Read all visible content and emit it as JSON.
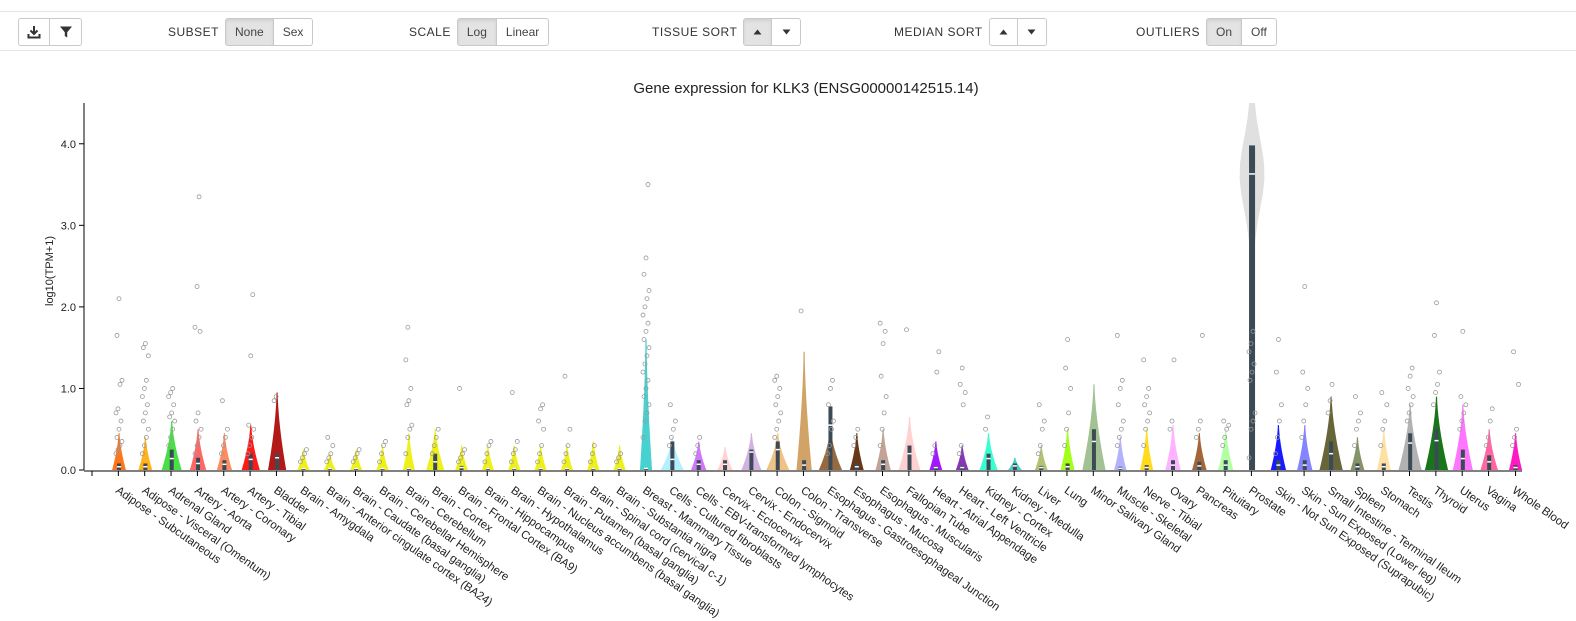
{
  "toolbar": {
    "download_icon": "download-icon",
    "filter_icon": "filter-icon",
    "subset": {
      "label": "SUBSET",
      "options": [
        "None",
        "Sex"
      ],
      "selected": "None"
    },
    "scale": {
      "label": "SCALE",
      "options": [
        "Log",
        "Linear"
      ],
      "selected": "Log"
    },
    "tissue_sort": {
      "label": "TISSUE SORT",
      "selected": "up"
    },
    "median_sort": {
      "label": "MEDIAN SORT",
      "selected": ""
    },
    "outliers": {
      "label": "OUTLIERS",
      "options": [
        "On",
        "Off"
      ],
      "selected": "On"
    }
  },
  "chart_data": {
    "type": "violin",
    "title": "Gene expression for KLK3 (ENSG00000142515.14)",
    "ylabel": "log10(TPM+1)",
    "ylim": [
      0,
      4.5
    ],
    "yticks": [
      "0.0",
      "1.0",
      "2.0",
      "3.0",
      "4.0"
    ],
    "categories": [
      "Adipose - Subcutaneous",
      "Adipose - Visceral (Omentum)",
      "Adrenal Gland",
      "Artery - Aorta",
      "Artery - Coronary",
      "Artery - Tibial",
      "Bladder",
      "Brain - Amygdala",
      "Brain - Anterior cingulate cortex (BA24)",
      "Brain - Caudate (basal ganglia)",
      "Brain - Cerebellar Hemisphere",
      "Brain - Cerebellum",
      "Brain - Cortex",
      "Brain - Frontal Cortex (BA9)",
      "Brain - Hippocampus",
      "Brain - Hypothalamus",
      "Brain - Nucleus accumbens (basal ganglia)",
      "Brain - Putamen (basal ganglia)",
      "Brain - Spinal cord (cervical c-1)",
      "Brain - Substantia nigra",
      "Breast - Mammary Tissue",
      "Cells - Cultured fibroblasts",
      "Cells - EBV-transformed lymphocytes",
      "Cervix - Ectocervix",
      "Cervix - Endocervix",
      "Colon - Sigmoid",
      "Colon - Transverse",
      "Esophagus - Gastroesophageal Junction",
      "Esophagus - Mucosa",
      "Esophagus - Muscularis",
      "Fallopian Tube",
      "Heart - Atrial Appendage",
      "Heart - Left Ventricle",
      "Kidney - Cortex",
      "Kidney - Medulla",
      "Liver",
      "Lung",
      "Minor Salivary Gland",
      "Muscle - Skeletal",
      "Nerve - Tibial",
      "Ovary",
      "Pancreas",
      "Pituitary",
      "Prostate",
      "Skin - Not Sun Exposed (Suprapubic)",
      "Skin - Sun Exposed (Lower leg)",
      "Small Intestine - Terminal Ileum",
      "Spleen",
      "Stomach",
      "Testis",
      "Thyroid",
      "Uterus",
      "Vagina",
      "Whole Blood"
    ],
    "colors": [
      "#ff6600",
      "#ffaa00",
      "#33dd33",
      "#ff5555",
      "#ff7f50",
      "#ff0000",
      "#aa0000",
      "#eeee00",
      "#eeee00",
      "#eeee00",
      "#eeee00",
      "#eeee00",
      "#eeee00",
      "#eeee00",
      "#eeee00",
      "#eeee00",
      "#eeee00",
      "#eeee00",
      "#eeee00",
      "#eeee00",
      "#33cccc",
      "#aaeeff",
      "#cc66ff",
      "#ffcccc",
      "#ccaadd",
      "#eebb77",
      "#cc9955",
      "#8b5a2b",
      "#552200",
      "#bb9988",
      "#ffcccc",
      "#9900ff",
      "#7722aa",
      "#22ffcc",
      "#33ccbb",
      "#aabb66",
      "#99ff00",
      "#99bb88",
      "#aaaaff",
      "#ffd700",
      "#ffaaff",
      "#995522",
      "#aaff99",
      "#dddddd",
      "#0000ff",
      "#7777ff",
      "#555522",
      "#778855",
      "#ffdd99",
      "#aaaaaa",
      "#006600",
      "#ff66ff",
      "#ff5599",
      "#ff00bb"
    ],
    "medians": [
      0.04,
      0.04,
      0.14,
      0.08,
      0.07,
      0.13,
      0.15,
      0.02,
      0.02,
      0.02,
      0.02,
      0.02,
      0.1,
      0.03,
      0.02,
      0.02,
      0.02,
      0.02,
      0.02,
      0.02,
      0.02,
      0.13,
      0.07,
      0.07,
      0.22,
      0.25,
      0.06,
      0.55,
      0.04,
      0.07,
      0.2,
      0.03,
      0.03,
      0.14,
      0.05,
      0.03,
      0.04,
      0.35,
      0.02,
      0.03,
      0.06,
      0.05,
      0.06,
      3.63,
      0.06,
      0.06,
      0.2,
      0.04,
      0.04,
      0.33,
      0.36,
      0.14,
      0.1,
      0.03
    ],
    "violin_max": [
      0.45,
      0.4,
      0.6,
      0.5,
      0.45,
      0.55,
      0.95,
      0.25,
      0.2,
      0.25,
      0.3,
      0.45,
      0.5,
      0.3,
      0.3,
      0.3,
      0.3,
      0.3,
      0.35,
      0.3,
      1.6,
      0.4,
      0.35,
      0.28,
      0.45,
      0.45,
      1.45,
      0.5,
      0.45,
      0.5,
      0.65,
      0.35,
      0.3,
      0.45,
      0.15,
      0.3,
      0.5,
      1.05,
      0.4,
      0.5,
      0.55,
      0.45,
      0.5,
      4.5,
      0.55,
      0.55,
      0.9,
      0.4,
      0.5,
      0.8,
      0.9,
      0.8,
      0.5,
      0.45
    ],
    "q3": [
      0.08,
      0.08,
      0.25,
      0.15,
      0.12,
      0.2,
      0.2,
      0.03,
      0.03,
      0.03,
      0.03,
      0.03,
      0.2,
      0.05,
      0.03,
      0.03,
      0.03,
      0.03,
      0.03,
      0.03,
      0.03,
      0.35,
      0.12,
      0.12,
      0.25,
      0.35,
      0.12,
      0.78,
      0.08,
      0.12,
      0.3,
      0.05,
      0.05,
      0.2,
      0.08,
      0.05,
      0.08,
      0.5,
      0.04,
      0.06,
      0.12,
      0.1,
      0.12,
      3.98,
      0.12,
      0.12,
      0.35,
      0.08,
      0.08,
      0.45,
      0.5,
      0.25,
      0.18,
      0.06
    ],
    "outliers": [
      [
        0.2,
        0.25,
        0.3,
        0.35,
        0.4,
        0.5,
        0.6,
        0.7,
        0.75,
        1.05,
        1.1,
        1.65,
        2.1
      ],
      [
        0.2,
        0.3,
        0.4,
        0.5,
        0.6,
        0.7,
        0.8,
        0.9,
        1.0,
        1.1,
        1.4,
        1.5,
        1.55
      ],
      [
        0.3,
        0.4,
        0.5,
        0.6,
        0.65,
        0.7,
        0.8,
        0.9,
        0.95,
        1.0
      ],
      [
        0.2,
        0.3,
        0.4,
        0.5,
        0.6,
        0.7,
        1.7,
        1.75,
        2.25,
        3.35
      ],
      [
        0.2,
        0.3,
        0.4,
        0.5,
        0.85
      ],
      [
        0.2,
        0.3,
        0.4,
        0.5,
        0.55,
        1.4,
        2.15
      ],
      [
        0.85,
        0.9
      ],
      [
        0.1,
        0.15,
        0.2,
        0.25
      ],
      [
        0.1,
        0.15,
        0.2,
        0.3,
        0.4
      ],
      [
        0.1,
        0.15,
        0.2,
        0.25
      ],
      [
        0.1,
        0.2,
        0.3,
        0.35
      ],
      [
        0.2,
        0.4,
        0.5,
        0.55,
        0.8,
        0.85,
        1.0,
        1.35,
        1.75
      ],
      [
        0.2,
        0.3,
        0.4,
        0.5
      ],
      [
        0.1,
        0.15,
        0.2,
        0.25,
        1.0
      ],
      [
        0.1,
        0.2,
        0.3,
        0.35
      ],
      [
        0.1,
        0.2,
        0.25,
        0.35,
        0.95
      ],
      [
        0.1,
        0.2,
        0.3,
        0.5,
        0.6,
        0.75,
        0.8
      ],
      [
        0.1,
        0.2,
        0.3,
        0.5,
        1.15
      ],
      [
        0.1,
        0.2,
        0.3
      ],
      [
        0.1,
        0.15,
        0.2
      ],
      [
        0.4,
        0.6,
        0.7,
        0.8,
        0.9,
        1.0,
        1.1,
        1.2,
        1.3,
        1.4,
        1.5,
        1.6,
        1.7,
        1.8,
        1.9,
        2.0,
        2.1,
        2.2,
        2.4,
        2.6,
        3.5
      ],
      [
        0.3,
        0.4,
        0.5,
        0.6,
        0.8
      ],
      [
        0.2,
        0.3,
        0.4
      ],
      [],
      [],
      [
        0.4,
        0.5,
        0.6,
        0.7,
        0.8,
        0.9,
        1.0,
        1.1,
        1.15
      ],
      [
        1.95
      ],
      [
        0.2,
        0.3,
        0.5,
        0.6,
        0.8,
        1.0,
        1.1
      ],
      [
        0.3,
        0.4,
        0.5
      ],
      [
        0.3,
        0.5,
        0.7,
        0.9,
        1.15,
        1.55,
        1.7,
        1.8
      ],
      [
        1.72
      ],
      [
        0.2,
        0.3,
        1.2,
        1.45
      ],
      [
        0.2,
        0.3,
        0.8,
        0.95,
        1.05,
        1.25
      ],
      [
        0.5,
        0.65
      ],
      [],
      [
        0.2,
        0.3,
        0.5,
        0.6,
        0.8
      ],
      [
        0.3,
        0.5,
        0.7,
        1.0,
        1.25,
        1.6
      ],
      [],
      [
        0.3,
        0.4,
        0.5,
        0.6,
        0.8,
        1.0,
        1.1,
        1.65
      ],
      [
        0.3,
        0.5,
        0.6,
        0.7,
        0.8,
        0.9,
        1.0,
        1.35
      ],
      [
        0.5,
        0.6,
        1.35
      ],
      [
        0.4,
        0.5,
        0.6,
        1.65
      ],
      [
        0.3,
        0.4,
        0.5,
        0.55,
        0.6
      ],
      [
        0.15,
        0.5,
        0.6,
        0.7,
        1.1,
        1.2,
        1.3,
        1.45,
        1.55,
        1.7
      ],
      [
        0.2,
        0.4,
        0.6,
        0.8,
        1.2,
        1.6
      ],
      [
        0.4,
        0.6,
        0.8,
        1.0,
        1.2,
        2.25
      ],
      [
        0.7,
        0.85,
        1.05
      ],
      [
        0.3,
        0.5,
        0.6,
        0.7,
        0.9
      ],
      [
        0.3,
        0.5,
        0.6,
        0.8,
        0.95
      ],
      [
        0.6,
        0.7,
        0.8,
        0.9,
        1.0,
        1.15,
        1.25
      ],
      [
        0.8,
        0.95,
        1.05,
        1.2,
        1.65,
        2.05
      ],
      [
        0.5,
        0.6,
        0.7,
        0.8,
        0.9,
        1.7
      ],
      [
        0.3,
        0.4,
        0.6,
        0.75
      ],
      [
        0.3,
        0.4,
        0.5,
        1.05,
        1.45
      ]
    ]
  }
}
